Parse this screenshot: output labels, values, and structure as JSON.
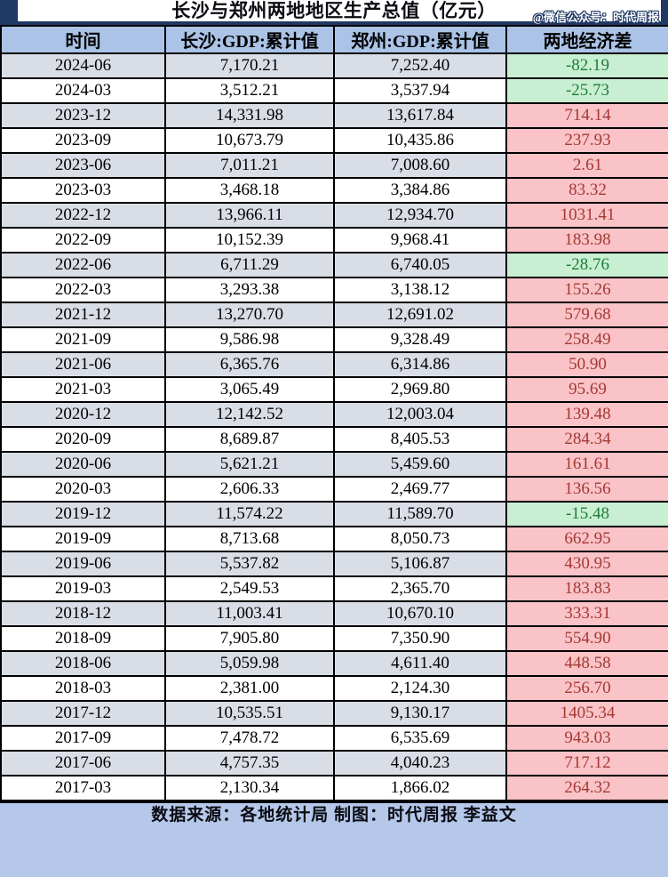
{
  "page": {
    "title": "长沙与郑州两地地区生产总值（亿元）",
    "watermark": "@微信公众号：时代周报",
    "footer": "数据来源：各地统计局 制图：时代周报 李益文"
  },
  "colors": {
    "frame_navy": "#1F3864",
    "header_blue": "#AAC3E6",
    "footer_blue": "#B5C8EA",
    "stripe_gray_blue": "#D9DDE6",
    "diff_positive_bg": "#F9C3C8",
    "diff_positive_text": "#A53932",
    "diff_negative_bg": "#C9EFD3",
    "diff_negative_text": "#1F7D35",
    "grid": "#000000"
  },
  "chart_data": {
    "type": "table",
    "title": "长沙与郑州两地地区生产总值（亿元）",
    "columns": [
      "时间",
      "长沙:GDP:累计值",
      "郑州:GDP:累计值",
      "两地经济差"
    ],
    "rows": [
      {
        "date": "2024-06",
        "changsha": "7,170.21",
        "zhengzhou": "7,252.40",
        "diff": "-82.19"
      },
      {
        "date": "2024-03",
        "changsha": "3,512.21",
        "zhengzhou": "3,537.94",
        "diff": "-25.73"
      },
      {
        "date": "2023-12",
        "changsha": "14,331.98",
        "zhengzhou": "13,617.84",
        "diff": "714.14"
      },
      {
        "date": "2023-09",
        "changsha": "10,673.79",
        "zhengzhou": "10,435.86",
        "diff": "237.93"
      },
      {
        "date": "2023-06",
        "changsha": "7,011.21",
        "zhengzhou": "7,008.60",
        "diff": "2.61"
      },
      {
        "date": "2023-03",
        "changsha": "3,468.18",
        "zhengzhou": "3,384.86",
        "diff": "83.32"
      },
      {
        "date": "2022-12",
        "changsha": "13,966.11",
        "zhengzhou": "12,934.70",
        "diff": "1031.41"
      },
      {
        "date": "2022-09",
        "changsha": "10,152.39",
        "zhengzhou": "9,968.41",
        "diff": "183.98"
      },
      {
        "date": "2022-06",
        "changsha": "6,711.29",
        "zhengzhou": "6,740.05",
        "diff": "-28.76"
      },
      {
        "date": "2022-03",
        "changsha": "3,293.38",
        "zhengzhou": "3,138.12",
        "diff": "155.26"
      },
      {
        "date": "2021-12",
        "changsha": "13,270.70",
        "zhengzhou": "12,691.02",
        "diff": "579.68"
      },
      {
        "date": "2021-09",
        "changsha": "9,586.98",
        "zhengzhou": "9,328.49",
        "diff": "258.49"
      },
      {
        "date": "2021-06",
        "changsha": "6,365.76",
        "zhengzhou": "6,314.86",
        "diff": "50.90"
      },
      {
        "date": "2021-03",
        "changsha": "3,065.49",
        "zhengzhou": "2,969.80",
        "diff": "95.69"
      },
      {
        "date": "2020-12",
        "changsha": "12,142.52",
        "zhengzhou": "12,003.04",
        "diff": "139.48"
      },
      {
        "date": "2020-09",
        "changsha": "8,689.87",
        "zhengzhou": "8,405.53",
        "diff": "284.34"
      },
      {
        "date": "2020-06",
        "changsha": "5,621.21",
        "zhengzhou": "5,459.60",
        "diff": "161.61"
      },
      {
        "date": "2020-03",
        "changsha": "2,606.33",
        "zhengzhou": "2,469.77",
        "diff": "136.56"
      },
      {
        "date": "2019-12",
        "changsha": "11,574.22",
        "zhengzhou": "11,589.70",
        "diff": "-15.48"
      },
      {
        "date": "2019-09",
        "changsha": "8,713.68",
        "zhengzhou": "8,050.73",
        "diff": "662.95"
      },
      {
        "date": "2019-06",
        "changsha": "5,537.82",
        "zhengzhou": "5,106.87",
        "diff": "430.95"
      },
      {
        "date": "2019-03",
        "changsha": "2,549.53",
        "zhengzhou": "2,365.70",
        "diff": "183.83"
      },
      {
        "date": "2018-12",
        "changsha": "11,003.41",
        "zhengzhou": "10,670.10",
        "diff": "333.31"
      },
      {
        "date": "2018-09",
        "changsha": "7,905.80",
        "zhengzhou": "7,350.90",
        "diff": "554.90"
      },
      {
        "date": "2018-06",
        "changsha": "5,059.98",
        "zhengzhou": "4,611.40",
        "diff": "448.58"
      },
      {
        "date": "2018-03",
        "changsha": "2,381.00",
        "zhengzhou": "2,124.30",
        "diff": "256.70"
      },
      {
        "date": "2017-12",
        "changsha": "10,535.51",
        "zhengzhou": "9,130.17",
        "diff": "1405.34"
      },
      {
        "date": "2017-09",
        "changsha": "7,478.72",
        "zhengzhou": "6,535.69",
        "diff": "943.03"
      },
      {
        "date": "2017-06",
        "changsha": "4,757.35",
        "zhengzhou": "4,040.23",
        "diff": "717.12"
      },
      {
        "date": "2017-03",
        "changsha": "2,130.34",
        "zhengzhou": "1,866.02",
        "diff": "264.32"
      }
    ]
  }
}
